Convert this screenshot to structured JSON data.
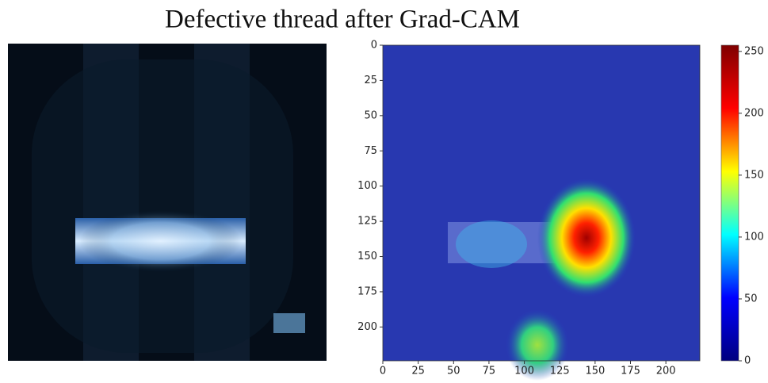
{
  "chart_data": {
    "type": "heatmap",
    "title": "Defective thread after Grad-CAM",
    "xlim": [
      0,
      224
    ],
    "ylim": [
      0,
      224
    ],
    "y_inverted": true,
    "xticks": [
      0,
      25,
      50,
      75,
      100,
      125,
      150,
      175,
      200
    ],
    "yticks": [
      0,
      25,
      50,
      75,
      100,
      125,
      150,
      175,
      200
    ],
    "colorbar_lim": [
      0,
      255
    ],
    "colorbar_ticks": [
      0,
      50,
      100,
      150,
      200,
      250
    ],
    "colormap": [
      "#00007f",
      "#0000ff",
      "#00ffff",
      "#ffff00",
      "#ff0000",
      "#7f0000"
    ]
  }
}
